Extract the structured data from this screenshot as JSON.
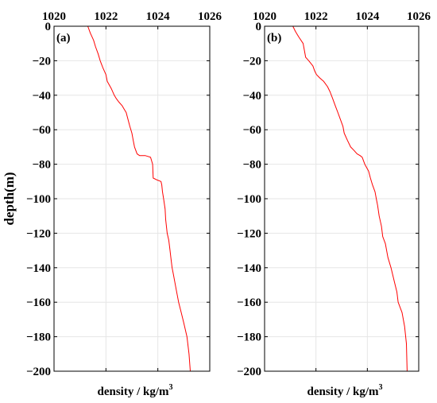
{
  "figure": {
    "ylabel": "depth(m)",
    "xlabel_prefix": "density / kg/m",
    "xlabel_sup": "3"
  },
  "colors": {
    "line": "#ff0000",
    "grid": "#e6e6e6",
    "axis": "#000000"
  },
  "chart_data": [
    {
      "type": "line",
      "panel_label": "(a)",
      "xlim": [
        1020,
        1026
      ],
      "ylim": [
        -200,
        0
      ],
      "xticks": [
        1020,
        1022,
        1024,
        1026
      ],
      "xtick_labels": [
        "1020",
        "1022",
        "1024",
        "1026"
      ],
      "yticks": [
        0,
        -20,
        -40,
        -60,
        -80,
        -100,
        -120,
        -140,
        -160,
        -180,
        -200
      ],
      "ytick_labels": [
        "0",
        "−20",
        "−40",
        "−60",
        "−80",
        "−100",
        "−120",
        "−140",
        "−160",
        "−180",
        "−200"
      ],
      "grid": true,
      "series": [
        {
          "x": [
            1021.3,
            1021.4,
            1021.52,
            1021.6,
            1021.7,
            1021.78,
            1021.88,
            1022.0,
            1022.05,
            1022.2,
            1022.32,
            1022.4,
            1022.5,
            1022.62,
            1022.7,
            1022.78,
            1022.85,
            1022.92,
            1023.0,
            1023.05,
            1023.1,
            1023.15,
            1023.2,
            1023.3,
            1023.42,
            1023.52,
            1023.62,
            1023.72,
            1023.8,
            1023.82,
            1023.95,
            1024.12,
            1024.15,
            1024.18,
            1024.22,
            1024.28,
            1024.3,
            1024.36,
            1024.42,
            1024.47,
            1024.5,
            1024.55,
            1024.6,
            1024.65,
            1024.7,
            1024.8,
            1024.9,
            1025.0,
            1025.12,
            1025.2,
            1025.25
          ],
          "y": [
            0,
            -4,
            -8,
            -12,
            -16,
            -20,
            -24,
            -28,
            -32,
            -36,
            -40,
            -42,
            -44,
            -46,
            -48,
            -50,
            -54,
            -58,
            -62,
            -66,
            -70,
            -72,
            -74,
            -75,
            -75,
            -75,
            -75.5,
            -76,
            -80,
            -88,
            -89,
            -90,
            -92,
            -96,
            -100,
            -106,
            -112,
            -120,
            -124,
            -130,
            -134,
            -140,
            -144,
            -148,
            -152,
            -160,
            -166,
            -172,
            -180,
            -190,
            -200
          ]
        }
      ]
    },
    {
      "type": "line",
      "panel_label": "(b)",
      "xlim": [
        1020,
        1026
      ],
      "ylim": [
        -200,
        0
      ],
      "xticks": [
        1020,
        1022,
        1024,
        1026
      ],
      "xtick_labels": [
        "1020",
        "1022",
        "1024",
        "1026"
      ],
      "yticks": [
        0,
        -20,
        -40,
        -60,
        -80,
        -100,
        -120,
        -140,
        -160,
        -180,
        -200
      ],
      "ytick_labels": [
        "0",
        "−20",
        "−40",
        "−60",
        "−80",
        "−100",
        "−120",
        "−140",
        "−160",
        "−180",
        "−200"
      ],
      "grid": true,
      "series": [
        {
          "x": [
            1021.1,
            1021.2,
            1021.32,
            1021.5,
            1021.55,
            1021.6,
            1021.72,
            1021.88,
            1021.95,
            1022.02,
            1022.15,
            1022.3,
            1022.45,
            1022.55,
            1022.65,
            1022.75,
            1022.85,
            1022.95,
            1023.05,
            1023.1,
            1023.22,
            1023.35,
            1023.48,
            1023.6,
            1023.72,
            1023.8,
            1023.9,
            1024.05,
            1024.12,
            1024.2,
            1024.3,
            1024.35,
            1024.4,
            1024.46,
            1024.55,
            1024.6,
            1024.7,
            1024.8,
            1024.92,
            1025.05,
            1025.15,
            1025.2,
            1025.35,
            1025.45,
            1025.52,
            1025.55
          ],
          "y": [
            0,
            -3,
            -6,
            -10,
            -14,
            -18,
            -20,
            -23,
            -26,
            -28,
            -30,
            -32,
            -35,
            -38,
            -42,
            -46,
            -50,
            -54,
            -58,
            -62,
            -66,
            -70,
            -72,
            -74,
            -75,
            -76,
            -80,
            -84,
            -88,
            -92,
            -96,
            -100,
            -104,
            -110,
            -116,
            -122,
            -126,
            -134,
            -140,
            -148,
            -154,
            -160,
            -166,
            -174,
            -184,
            -200
          ]
        }
      ]
    }
  ]
}
